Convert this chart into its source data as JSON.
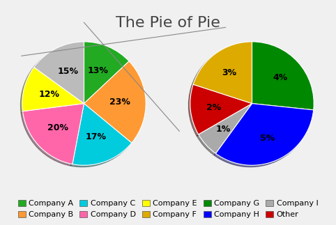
{
  "title": "The Pie of Pie",
  "main_labels": [
    "Company A",
    "Company B",
    "Company C",
    "Company D",
    "Company E",
    "Other"
  ],
  "main_values": [
    13,
    23,
    17,
    20,
    12,
    15
  ],
  "main_colors": [
    "#22aa22",
    "#ff9933",
    "#00ccdd",
    "#ff66aa",
    "#ffff00",
    "#bbbbbb"
  ],
  "sub_labels": [
    "Company G",
    "Company H",
    "Company I",
    "Other",
    "Company F"
  ],
  "sub_values": [
    4,
    5,
    1,
    2,
    3
  ],
  "sub_colors": [
    "#008800",
    "#0000ff",
    "#aaaaaa",
    "#cc0000",
    "#ddaa00"
  ],
  "legend_entries": [
    {
      "label": "Company A",
      "color": "#22aa22"
    },
    {
      "label": "Company B",
      "color": "#ff9933"
    },
    {
      "label": "Company C",
      "color": "#00ccdd"
    },
    {
      "label": "Company D",
      "color": "#ff66aa"
    },
    {
      "label": "Company E",
      "color": "#ffff00"
    },
    {
      "label": "Company F",
      "color": "#ddaa00"
    },
    {
      "label": "Company G",
      "color": "#008800"
    },
    {
      "label": "Company H",
      "color": "#0000ff"
    },
    {
      "label": "Company I",
      "color": "#aaaaaa"
    },
    {
      "label": "Other",
      "color": "#cc0000"
    }
  ],
  "bg_color": "#f0f0f0",
  "title_fontsize": 16,
  "label_fontsize": 9,
  "legend_fontsize": 8
}
